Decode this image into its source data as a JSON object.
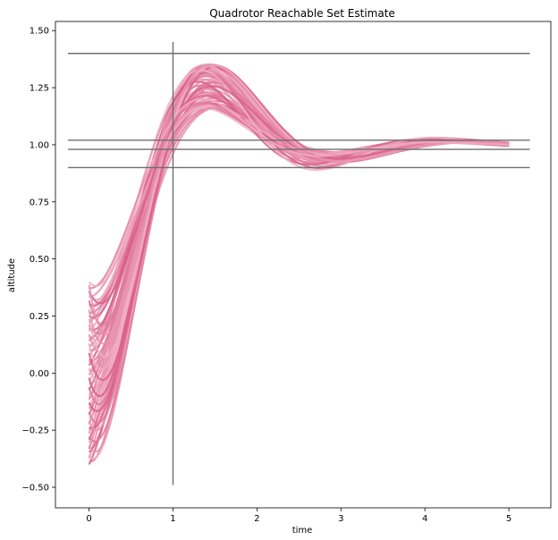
{
  "chart_data": {
    "type": "line",
    "title": "Quadrotor Reachable Set Estimate",
    "xlabel": "time",
    "ylabel": "altitude",
    "xlim": [
      -0.4,
      5.5
    ],
    "ylim": [
      -0.59,
      1.54
    ],
    "x_ticks": [
      0,
      1,
      2,
      3,
      4,
      5
    ],
    "y_ticks": [
      -0.5,
      -0.25,
      0.0,
      0.25,
      0.5,
      0.75,
      1.0,
      1.25,
      1.5
    ],
    "y_tick_labels": [
      "−0.50",
      "−0.25",
      "0.00",
      "0.25",
      "0.50",
      "0.75",
      "1.00",
      "1.25",
      "1.50"
    ],
    "grid": false,
    "reference_lines": {
      "horizontal": [
        {
          "y": 1.4,
          "x_range": [
            -0.25,
            5.25
          ]
        },
        {
          "y": 1.02,
          "x_range": [
            -0.25,
            5.25
          ]
        },
        {
          "y": 0.98,
          "x_range": [
            -0.25,
            5.25
          ]
        },
        {
          "y": 0.9,
          "x_range": [
            -0.25,
            5.25
          ]
        }
      ],
      "vertical": [
        {
          "x": 1.0,
          "y_range": [
            -0.49,
            1.45
          ]
        }
      ]
    },
    "trajectory_set": {
      "x_range": [
        0,
        5
      ],
      "initial_altitude_range": [
        -0.4,
        0.4
      ],
      "peak_altitude_range": [
        1.16,
        1.35
      ],
      "peak_time": 1.3,
      "settle_value": 1.0,
      "trajectory_count": 60
    },
    "colors": {
      "trajectory_dark": "#d9628a",
      "trajectory_light": "#f7c6d6",
      "reference_line": "#6e6e6e"
    }
  }
}
